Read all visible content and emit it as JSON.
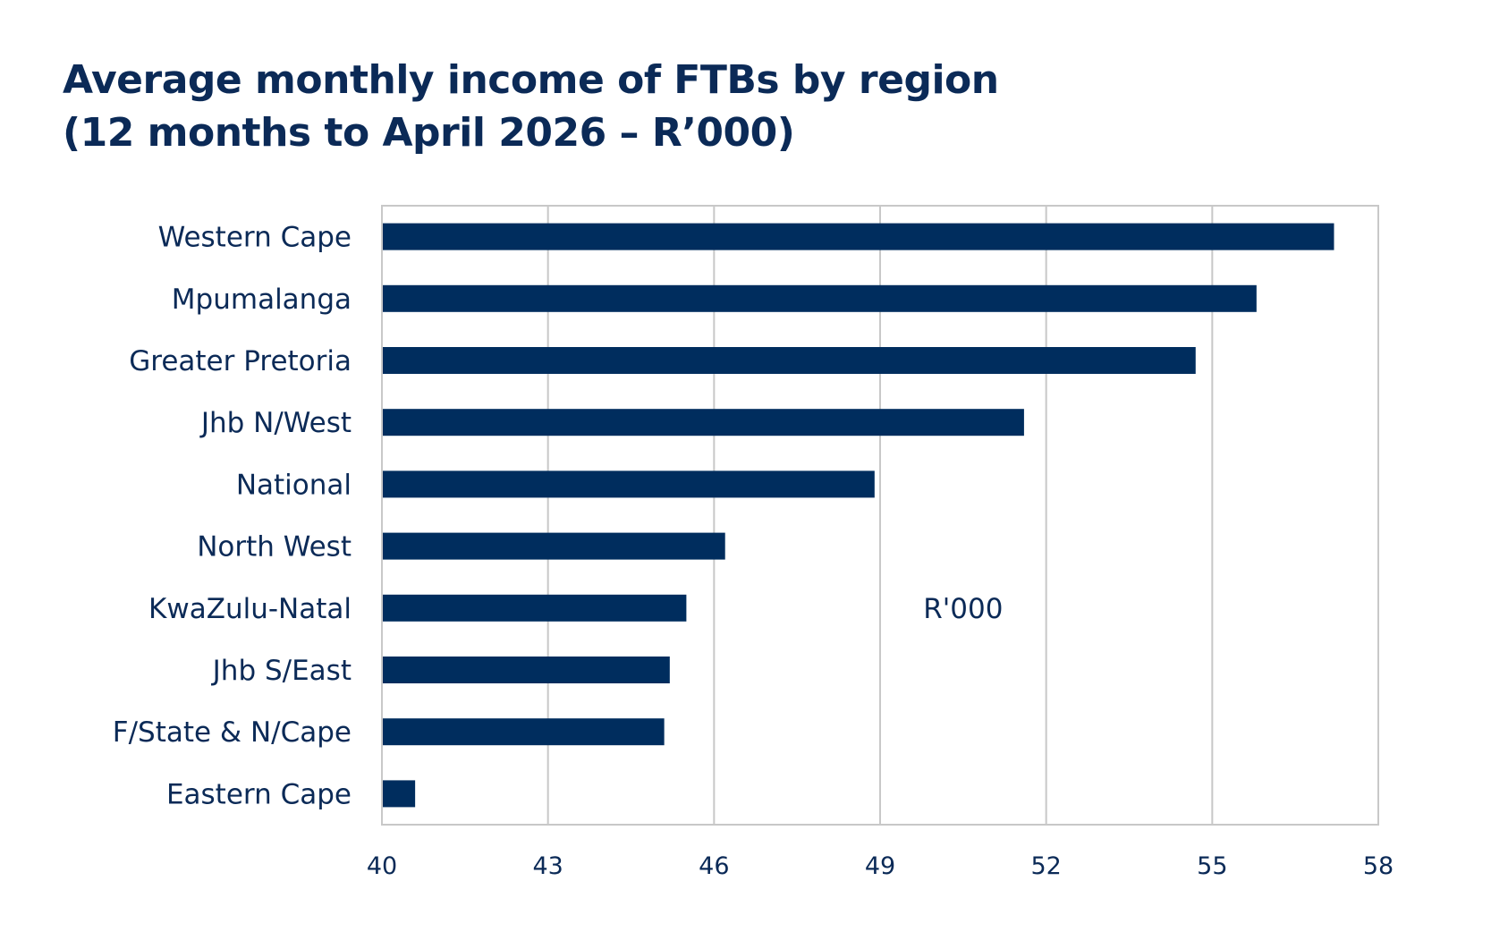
{
  "chart_data": {
    "type": "bar",
    "orientation": "horizontal",
    "title_line1": "Average monthly income of FTBs by region",
    "title_line2": "(12 months to April 2026 – R’000)",
    "categories": [
      "Western Cape",
      "Mpumalanga",
      "Greater Pretoria",
      "Jhb N/West",
      "National",
      "North West",
      "KwaZulu-Natal",
      "Jhb S/East",
      "F/State & N/Cape",
      "Eastern Cape"
    ],
    "values": [
      57.2,
      55.8,
      54.7,
      51.6,
      48.9,
      46.2,
      45.5,
      45.2,
      45.1,
      40.6
    ],
    "xlim": [
      40,
      58
    ],
    "xticks": [
      40,
      43,
      46,
      49,
      52,
      55,
      58
    ],
    "unit_annotation": "R'000",
    "grid": true,
    "legend": "none",
    "colors": {
      "bar": "#002d5e",
      "text": "#0b2a57",
      "grid": "#c8c8c8"
    }
  }
}
